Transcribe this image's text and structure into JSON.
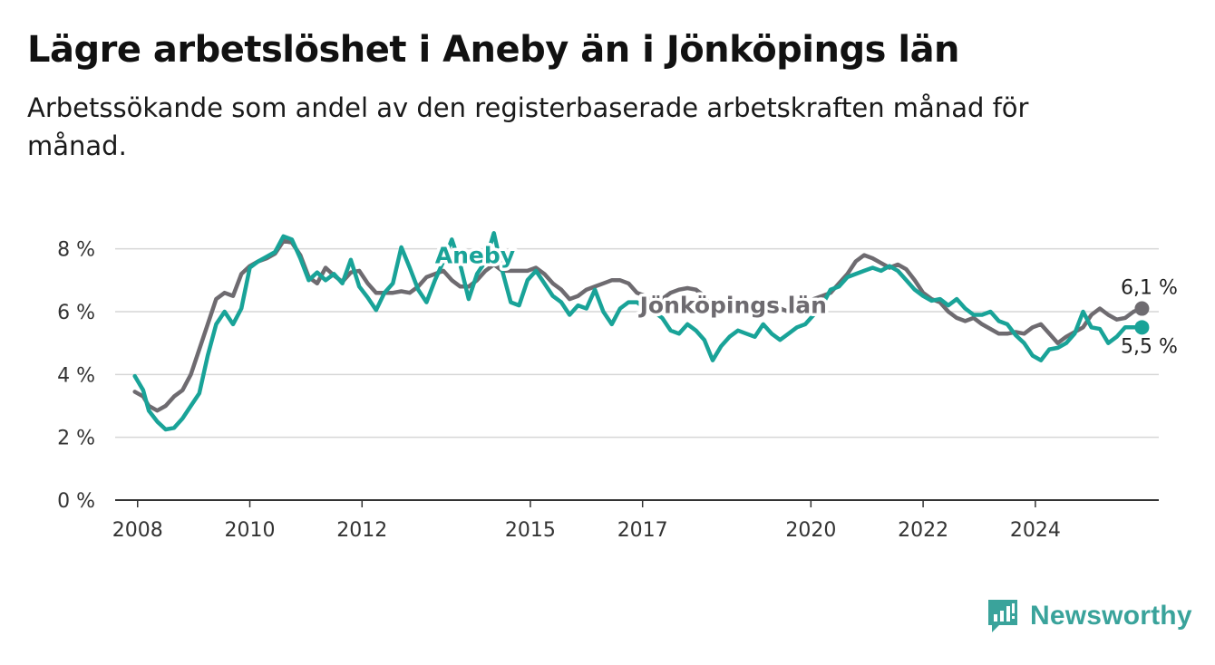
{
  "title": "Lägre arbetslöshet i Aneby än i Jönköpings län",
  "subtitle": "Arbetssökande som andel av den registerbaserade arbetskraften månad för månad.",
  "brand": {
    "name": "Newsworthy",
    "icon": "newsworthy-logo-icon",
    "color": "#3aa39b"
  },
  "chart_data": {
    "type": "line",
    "ylim": [
      0,
      9
    ],
    "yticks": [
      {
        "value": 0,
        "label": "0 %"
      },
      {
        "value": 2,
        "label": "2 %"
      },
      {
        "value": 4,
        "label": "4 %"
      },
      {
        "value": 6,
        "label": "6 %"
      },
      {
        "value": 8,
        "label": "8 %"
      }
    ],
    "xlim": [
      2007.6,
      2026.2
    ],
    "xticks": [
      {
        "value": 2008,
        "label": "2008"
      },
      {
        "value": 2010,
        "label": "2010"
      },
      {
        "value": 2012,
        "label": "2012"
      },
      {
        "value": 2015,
        "label": "2015"
      },
      {
        "value": 2017,
        "label": "2017"
      },
      {
        "value": 2020,
        "label": "2020"
      },
      {
        "value": 2022,
        "label": "2022"
      },
      {
        "value": 2024,
        "label": "2024"
      }
    ],
    "grid": true,
    "series": [
      {
        "name": "Jönköpings län",
        "color": "#6e6b70",
        "end_label": "6,1 %",
        "points": [
          [
            2007.95,
            3.45
          ],
          [
            2008.1,
            3.3
          ],
          [
            2008.2,
            3.0
          ],
          [
            2008.35,
            2.85
          ],
          [
            2008.5,
            3.0
          ],
          [
            2008.65,
            3.3
          ],
          [
            2008.8,
            3.5
          ],
          [
            2008.95,
            4.0
          ],
          [
            2009.1,
            4.8
          ],
          [
            2009.25,
            5.6
          ],
          [
            2009.4,
            6.4
          ],
          [
            2009.55,
            6.6
          ],
          [
            2009.7,
            6.5
          ],
          [
            2009.85,
            7.2
          ],
          [
            2010.0,
            7.45
          ],
          [
            2010.15,
            7.6
          ],
          [
            2010.3,
            7.7
          ],
          [
            2010.45,
            7.85
          ],
          [
            2010.6,
            8.25
          ],
          [
            2010.75,
            8.2
          ],
          [
            2010.9,
            7.8
          ],
          [
            2011.05,
            7.1
          ],
          [
            2011.2,
            6.9
          ],
          [
            2011.35,
            7.4
          ],
          [
            2011.5,
            7.15
          ],
          [
            2011.65,
            6.95
          ],
          [
            2011.8,
            7.25
          ],
          [
            2011.95,
            7.3
          ],
          [
            2012.1,
            6.9
          ],
          [
            2012.25,
            6.6
          ],
          [
            2012.4,
            6.6
          ],
          [
            2012.55,
            6.6
          ],
          [
            2012.7,
            6.65
          ],
          [
            2012.85,
            6.6
          ],
          [
            2013.0,
            6.8
          ],
          [
            2013.15,
            7.1
          ],
          [
            2013.3,
            7.2
          ],
          [
            2013.45,
            7.3
          ],
          [
            2013.6,
            7.0
          ],
          [
            2013.75,
            6.8
          ],
          [
            2013.9,
            6.8
          ],
          [
            2014.05,
            7.0
          ],
          [
            2014.2,
            7.3
          ],
          [
            2014.35,
            7.5
          ],
          [
            2014.5,
            7.3
          ],
          [
            2014.65,
            7.3
          ],
          [
            2014.8,
            7.3
          ],
          [
            2014.95,
            7.3
          ],
          [
            2015.1,
            7.4
          ],
          [
            2015.25,
            7.2
          ],
          [
            2015.4,
            6.9
          ],
          [
            2015.55,
            6.7
          ],
          [
            2015.7,
            6.4
          ],
          [
            2015.85,
            6.5
          ],
          [
            2016.0,
            6.7
          ],
          [
            2016.15,
            6.8
          ],
          [
            2016.3,
            6.9
          ],
          [
            2016.45,
            7.0
          ],
          [
            2016.6,
            7.0
          ],
          [
            2016.75,
            6.9
          ],
          [
            2016.9,
            6.6
          ],
          [
            2017.05,
            6.5
          ],
          [
            2017.2,
            6.3
          ],
          [
            2017.35,
            6.4
          ],
          [
            2017.5,
            6.6
          ],
          [
            2017.65,
            6.7
          ],
          [
            2017.8,
            6.75
          ],
          [
            2017.95,
            6.7
          ],
          [
            2018.1,
            6.5
          ],
          [
            2018.25,
            6.1
          ],
          [
            2018.4,
            6.2
          ],
          [
            2018.55,
            6.3
          ],
          [
            2018.7,
            6.25
          ],
          [
            2018.85,
            6.3
          ],
          [
            2019.0,
            6.1
          ],
          [
            2019.15,
            6.2
          ],
          [
            2019.3,
            6.1
          ],
          [
            2019.45,
            6.1
          ],
          [
            2019.6,
            6.0
          ],
          [
            2019.75,
            6.1
          ],
          [
            2019.9,
            6.2
          ],
          [
            2020.05,
            6.4
          ],
          [
            2020.2,
            6.5
          ],
          [
            2020.35,
            6.6
          ],
          [
            2020.5,
            6.9
          ],
          [
            2020.65,
            7.2
          ],
          [
            2020.8,
            7.6
          ],
          [
            2020.95,
            7.8
          ],
          [
            2021.1,
            7.7
          ],
          [
            2021.25,
            7.55
          ],
          [
            2021.4,
            7.4
          ],
          [
            2021.55,
            7.5
          ],
          [
            2021.7,
            7.35
          ],
          [
            2021.85,
            7.0
          ],
          [
            2022.0,
            6.6
          ],
          [
            2022.15,
            6.4
          ],
          [
            2022.3,
            6.3
          ],
          [
            2022.45,
            6.0
          ],
          [
            2022.6,
            5.8
          ],
          [
            2022.75,
            5.7
          ],
          [
            2022.9,
            5.8
          ],
          [
            2023.05,
            5.6
          ],
          [
            2023.2,
            5.45
          ],
          [
            2023.35,
            5.3
          ],
          [
            2023.5,
            5.3
          ],
          [
            2023.65,
            5.35
          ],
          [
            2023.8,
            5.3
          ],
          [
            2023.95,
            5.5
          ],
          [
            2024.1,
            5.6
          ],
          [
            2024.25,
            5.3
          ],
          [
            2024.4,
            5.0
          ],
          [
            2024.55,
            5.2
          ],
          [
            2024.7,
            5.35
          ],
          [
            2024.85,
            5.5
          ],
          [
            2025.0,
            5.9
          ],
          [
            2025.15,
            6.1
          ],
          [
            2025.3,
            5.9
          ],
          [
            2025.45,
            5.75
          ],
          [
            2025.6,
            5.8
          ],
          [
            2025.75,
            6.0
          ],
          [
            2025.9,
            6.1
          ]
        ]
      },
      {
        "name": "Aneby",
        "color": "#19a398",
        "end_label": "5,5 %",
        "points": [
          [
            2007.95,
            3.95
          ],
          [
            2008.1,
            3.5
          ],
          [
            2008.2,
            2.85
          ],
          [
            2008.35,
            2.5
          ],
          [
            2008.5,
            2.25
          ],
          [
            2008.65,
            2.3
          ],
          [
            2008.8,
            2.6
          ],
          [
            2008.95,
            3.0
          ],
          [
            2009.1,
            3.4
          ],
          [
            2009.25,
            4.6
          ],
          [
            2009.4,
            5.6
          ],
          [
            2009.55,
            6.0
          ],
          [
            2009.7,
            5.6
          ],
          [
            2009.85,
            6.1
          ],
          [
            2010.0,
            7.4
          ],
          [
            2010.15,
            7.6
          ],
          [
            2010.3,
            7.75
          ],
          [
            2010.45,
            7.9
          ],
          [
            2010.6,
            8.4
          ],
          [
            2010.75,
            8.3
          ],
          [
            2010.9,
            7.7
          ],
          [
            2011.05,
            7.0
          ],
          [
            2011.2,
            7.25
          ],
          [
            2011.35,
            7.0
          ],
          [
            2011.5,
            7.2
          ],
          [
            2011.65,
            6.9
          ],
          [
            2011.8,
            7.65
          ],
          [
            2011.95,
            6.8
          ],
          [
            2012.1,
            6.45
          ],
          [
            2012.25,
            6.05
          ],
          [
            2012.4,
            6.6
          ],
          [
            2012.55,
            6.9
          ],
          [
            2012.7,
            8.05
          ],
          [
            2012.85,
            7.4
          ],
          [
            2013.0,
            6.7
          ],
          [
            2013.15,
            6.3
          ],
          [
            2013.3,
            7.0
          ],
          [
            2013.45,
            7.6
          ],
          [
            2013.6,
            8.3
          ],
          [
            2013.75,
            7.5
          ],
          [
            2013.9,
            6.4
          ],
          [
            2014.05,
            7.2
          ],
          [
            2014.2,
            7.6
          ],
          [
            2014.35,
            8.5
          ],
          [
            2014.5,
            7.3
          ],
          [
            2014.65,
            6.3
          ],
          [
            2014.8,
            6.2
          ],
          [
            2014.95,
            7.0
          ],
          [
            2015.1,
            7.3
          ],
          [
            2015.25,
            6.9
          ],
          [
            2015.4,
            6.5
          ],
          [
            2015.55,
            6.3
          ],
          [
            2015.7,
            5.9
          ],
          [
            2015.85,
            6.2
          ],
          [
            2016.0,
            6.1
          ],
          [
            2016.15,
            6.7
          ],
          [
            2016.3,
            6.0
          ],
          [
            2016.45,
            5.6
          ],
          [
            2016.6,
            6.1
          ],
          [
            2016.75,
            6.3
          ],
          [
            2016.9,
            6.3
          ],
          [
            2017.05,
            6.1
          ],
          [
            2017.2,
            6.0
          ],
          [
            2017.35,
            5.8
          ],
          [
            2017.5,
            5.4
          ],
          [
            2017.65,
            5.3
          ],
          [
            2017.8,
            5.6
          ],
          [
            2017.95,
            5.4
          ],
          [
            2018.1,
            5.1
          ],
          [
            2018.25,
            4.45
          ],
          [
            2018.4,
            4.9
          ],
          [
            2018.55,
            5.2
          ],
          [
            2018.7,
            5.4
          ],
          [
            2018.85,
            5.3
          ],
          [
            2019.0,
            5.2
          ],
          [
            2019.15,
            5.6
          ],
          [
            2019.3,
            5.3
          ],
          [
            2019.45,
            5.1
          ],
          [
            2019.6,
            5.3
          ],
          [
            2019.75,
            5.5
          ],
          [
            2019.9,
            5.6
          ],
          [
            2020.05,
            5.9
          ],
          [
            2020.2,
            6.2
          ],
          [
            2020.35,
            6.7
          ],
          [
            2020.5,
            6.8
          ],
          [
            2020.65,
            7.1
          ],
          [
            2020.8,
            7.2
          ],
          [
            2020.95,
            7.3
          ],
          [
            2021.1,
            7.4
          ],
          [
            2021.25,
            7.3
          ],
          [
            2021.4,
            7.45
          ],
          [
            2021.55,
            7.3
          ],
          [
            2021.7,
            7.0
          ],
          [
            2021.85,
            6.7
          ],
          [
            2022.0,
            6.5
          ],
          [
            2022.15,
            6.35
          ],
          [
            2022.3,
            6.4
          ],
          [
            2022.45,
            6.2
          ],
          [
            2022.6,
            6.4
          ],
          [
            2022.75,
            6.1
          ],
          [
            2022.9,
            5.9
          ],
          [
            2023.05,
            5.9
          ],
          [
            2023.2,
            6.0
          ],
          [
            2023.35,
            5.7
          ],
          [
            2023.5,
            5.6
          ],
          [
            2023.65,
            5.25
          ],
          [
            2023.8,
            5.0
          ],
          [
            2023.95,
            4.6
          ],
          [
            2024.1,
            4.45
          ],
          [
            2024.25,
            4.8
          ],
          [
            2024.4,
            4.85
          ],
          [
            2024.55,
            5.0
          ],
          [
            2024.7,
            5.3
          ],
          [
            2024.85,
            6.0
          ],
          [
            2025.0,
            5.5
          ],
          [
            2025.15,
            5.45
          ],
          [
            2025.3,
            5.0
          ],
          [
            2025.45,
            5.2
          ],
          [
            2025.6,
            5.5
          ],
          [
            2025.75,
            5.5
          ],
          [
            2025.9,
            5.5
          ]
        ]
      }
    ]
  }
}
